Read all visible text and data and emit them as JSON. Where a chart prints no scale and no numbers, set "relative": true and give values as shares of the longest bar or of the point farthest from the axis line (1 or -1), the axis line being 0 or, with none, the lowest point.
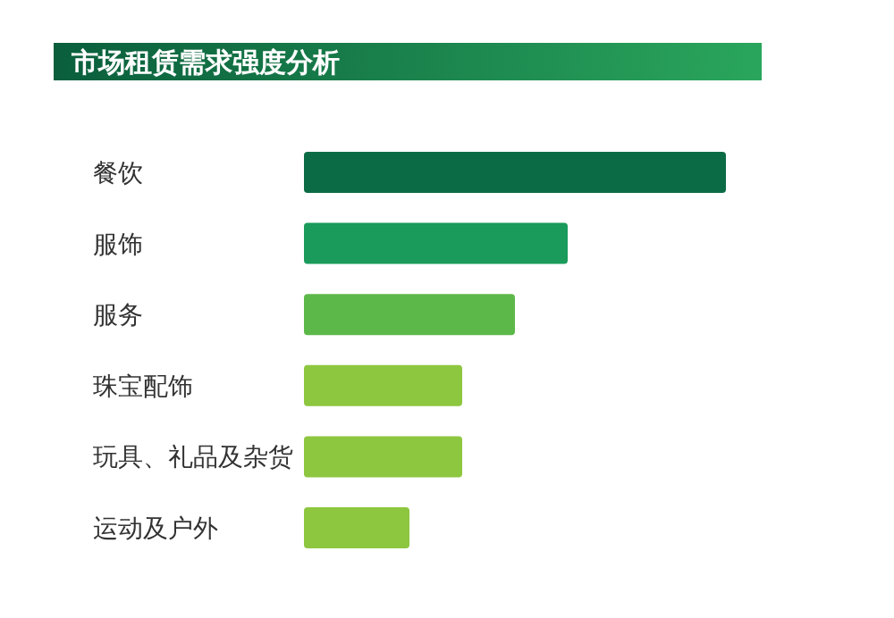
{
  "chart_data": {
    "type": "bar",
    "orientation": "horizontal",
    "relative": true,
    "title": "市场租赁需求强度分析",
    "categories": [
      "餐饮",
      "服饰",
      "服务",
      "珠宝配饰",
      "玩具、礼品及杂货",
      "运动及户外"
    ],
    "values": [
      1,
      0.625,
      0.5,
      0.375,
      0.375,
      0.25
    ],
    "colors": [
      "#0b6b45",
      "#1a9b5b",
      "#5db84a",
      "#8dc63f",
      "#8dc63f",
      "#8dc63f"
    ]
  }
}
